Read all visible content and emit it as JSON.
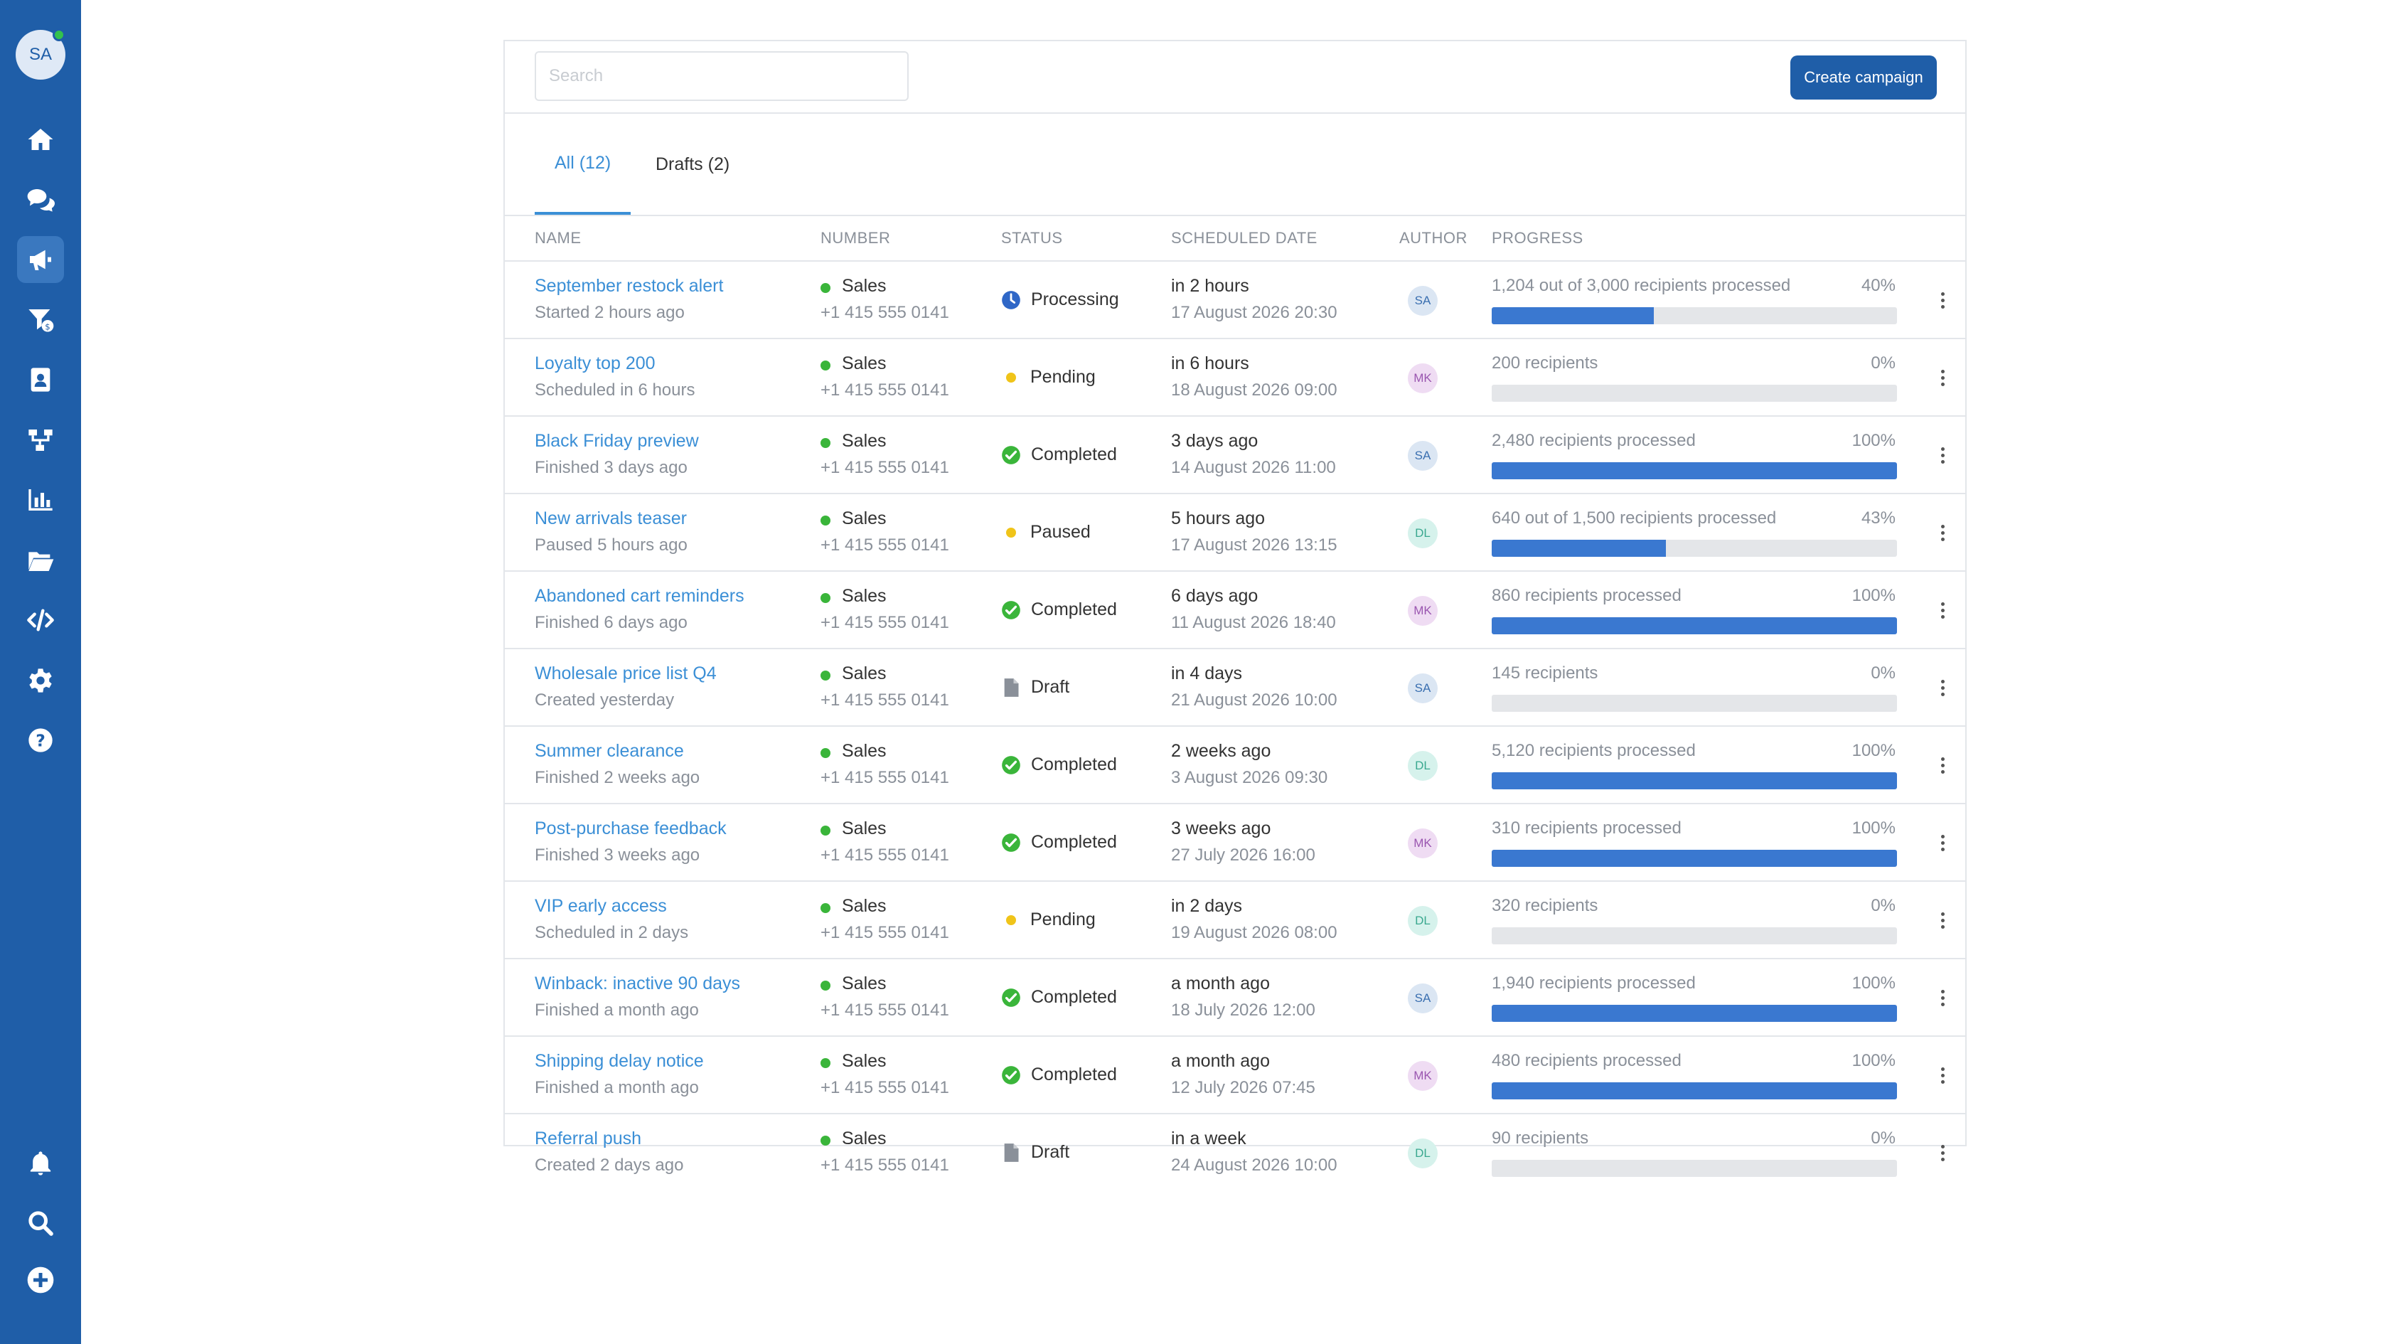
{
  "user": {
    "initials": "SA",
    "online_color": "#33c24d"
  },
  "sidebar": {
    "items": [
      {
        "icon": "home-icon"
      },
      {
        "icon": "chat-icon"
      },
      {
        "icon": "megaphone-icon",
        "active": true
      },
      {
        "icon": "funnel-dollar-icon"
      },
      {
        "icon": "contacts-book-icon"
      },
      {
        "icon": "flow-icon"
      },
      {
        "icon": "chart-icon"
      },
      {
        "icon": "folder-icon"
      },
      {
        "icon": "code-icon"
      },
      {
        "icon": "gear-icon"
      },
      {
        "icon": "help-icon"
      }
    ],
    "bottom": [
      {
        "icon": "bell-icon"
      },
      {
        "icon": "search-icon"
      },
      {
        "icon": "plus-circle-icon"
      }
    ]
  },
  "toolbar": {
    "search_placeholder": "Search",
    "create_label": "Create campaign"
  },
  "tabs": [
    {
      "label": "All (12)",
      "active": true
    },
    {
      "label": "Drafts (2)"
    }
  ],
  "columns": {
    "name": "NAME",
    "number": "NUMBER",
    "status": "STATUS",
    "scheduled": "SCHEDULED DATE",
    "author": "AUTHOR",
    "progress": "PROGRESS"
  },
  "author_colors": {
    "SA": {
      "bg": "#dbe6f3",
      "fg": "#3a6fb0"
    },
    "MK": {
      "bg": "#efdcf3",
      "fg": "#9a56b0"
    },
    "DL": {
      "bg": "#d6f2ec",
      "fg": "#3aa88f"
    }
  },
  "rows": [
    {
      "name": "September restock alert",
      "sub": "Started 2 hours ago",
      "number_label": "Sales",
      "number": "+1 415 555 0141",
      "status": "Processing",
      "status_kind": "processing",
      "when": "in 2 hours",
      "date": "17 August 2026 20:30",
      "author": "SA",
      "progress_text": "1,204 out of 3,000 recipients processed",
      "progress_pct": "40%",
      "progress": 0.4
    },
    {
      "name": "Loyalty top 200",
      "sub": "Scheduled in 6 hours",
      "number_label": "Sales",
      "number": "+1 415 555 0141",
      "status": "Pending",
      "status_kind": "pending",
      "when": "in 6 hours",
      "date": "18 August 2026 09:00",
      "author": "MK",
      "progress_text": "200 recipients",
      "progress_pct": "0%",
      "progress": 0
    },
    {
      "name": "Black Friday preview",
      "sub": "Finished 3 days ago",
      "number_label": "Sales",
      "number": "+1 415 555 0141",
      "status": "Completed",
      "status_kind": "completed",
      "when": "3 days ago",
      "date": "14 August 2026 11:00",
      "author": "SA",
      "progress_text": "2,480 recipients processed",
      "progress_pct": "100%",
      "progress": 1
    },
    {
      "name": "New arrivals teaser",
      "sub": "Paused 5 hours ago",
      "number_label": "Sales",
      "number": "+1 415 555 0141",
      "status": "Paused",
      "status_kind": "paused",
      "when": "5 hours ago",
      "date": "17 August 2026 13:15",
      "author": "DL",
      "progress_text": "640 out of 1,500 recipients processed",
      "progress_pct": "43%",
      "progress": 0.43
    },
    {
      "name": "Abandoned cart reminders",
      "sub": "Finished 6 days ago",
      "number_label": "Sales",
      "number": "+1 415 555 0141",
      "status": "Completed",
      "status_kind": "completed",
      "when": "6 days ago",
      "date": "11 August 2026 18:40",
      "author": "MK",
      "progress_text": "860 recipients processed",
      "progress_pct": "100%",
      "progress": 1
    },
    {
      "name": "Wholesale price list Q4",
      "sub": "Created yesterday",
      "number_label": "Sales",
      "number": "+1 415 555 0141",
      "status": "Draft",
      "status_kind": "draft",
      "when": "in 4 days",
      "date": "21 August 2026 10:00",
      "author": "SA",
      "progress_text": "145 recipients",
      "progress_pct": "0%",
      "progress": 0
    },
    {
      "name": "Summer clearance",
      "sub": "Finished 2 weeks ago",
      "number_label": "Sales",
      "number": "+1 415 555 0141",
      "status": "Completed",
      "status_kind": "completed",
      "when": "2 weeks ago",
      "date": "3 August 2026 09:30",
      "author": "DL",
      "progress_text": "5,120 recipients processed",
      "progress_pct": "100%",
      "progress": 1
    },
    {
      "name": "Post-purchase feedback",
      "sub": "Finished 3 weeks ago",
      "number_label": "Sales",
      "number": "+1 415 555 0141",
      "status": "Completed",
      "status_kind": "completed",
      "when": "3 weeks ago",
      "date": "27 July 2026 16:00",
      "author": "MK",
      "progress_text": "310 recipients processed",
      "progress_pct": "100%",
      "progress": 1
    },
    {
      "name": "VIP early access",
      "sub": "Scheduled in 2 days",
      "number_label": "Sales",
      "number": "+1 415 555 0141",
      "status": "Pending",
      "status_kind": "pending",
      "when": "in 2 days",
      "date": "19 August 2026 08:00",
      "author": "DL",
      "progress_text": "320 recipients",
      "progress_pct": "0%",
      "progress": 0
    },
    {
      "name": "Winback: inactive 90 days",
      "sub": "Finished a month ago",
      "number_label": "Sales",
      "number": "+1 415 555 0141",
      "status": "Completed",
      "status_kind": "completed",
      "when": "a month ago",
      "date": "18 July 2026 12:00",
      "author": "SA",
      "progress_text": "1,940 recipients processed",
      "progress_pct": "100%",
      "progress": 1
    },
    {
      "name": "Shipping delay notice",
      "sub": "Finished a month ago",
      "number_label": "Sales",
      "number": "+1 415 555 0141",
      "status": "Completed",
      "status_kind": "completed",
      "when": "a month ago",
      "date": "12 July 2026 07:45",
      "author": "MK",
      "progress_text": "480 recipients processed",
      "progress_pct": "100%",
      "progress": 1
    },
    {
      "name": "Referral push",
      "sub": "Created 2 days ago",
      "number_label": "Sales",
      "number": "+1 415 555 0141",
      "status": "Draft",
      "status_kind": "draft",
      "when": "in a week",
      "date": "24 August 2026 10:00",
      "author": "DL",
      "progress_text": "90 recipients",
      "progress_pct": "0%",
      "progress": 0
    }
  ]
}
